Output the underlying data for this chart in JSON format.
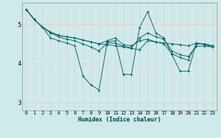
{
  "xlabel": "Humidex (Indice chaleur)",
  "bg_color": "#ceeaea",
  "grid_color": "#f0c8c8",
  "line_color": "#006666",
  "xlim": [
    -0.5,
    23.5
  ],
  "ylim": [
    2.8,
    5.55
  ],
  "yticks": [
    3,
    4,
    5
  ],
  "xticks": [
    0,
    1,
    2,
    3,
    4,
    5,
    6,
    7,
    8,
    9,
    10,
    11,
    12,
    13,
    14,
    15,
    16,
    17,
    18,
    19,
    20,
    21,
    22,
    23
  ],
  "series": [
    [
      5.38,
      5.12,
      4.93,
      4.65,
      4.58,
      4.52,
      4.45,
      3.68,
      3.45,
      3.32,
      4.55,
      4.58,
      3.72,
      3.72,
      4.92,
      5.32,
      4.78,
      4.65,
      4.22,
      3.8,
      3.8,
      4.52,
      4.48,
      4.42
    ],
    [
      5.38,
      5.12,
      4.93,
      4.8,
      4.72,
      4.68,
      4.65,
      4.6,
      4.55,
      4.5,
      4.48,
      4.45,
      4.42,
      4.38,
      4.35,
      4.58,
      4.55,
      4.52,
      4.5,
      4.48,
      4.45,
      4.52,
      4.5,
      4.45
    ],
    [
      5.38,
      5.12,
      4.93,
      4.78,
      4.68,
      4.62,
      4.58,
      4.5,
      4.42,
      4.32,
      4.52,
      4.52,
      4.44,
      4.4,
      4.65,
      4.78,
      4.68,
      4.62,
      4.32,
      4.22,
      4.18,
      4.44,
      4.44,
      4.42
    ],
    [
      5.38,
      5.12,
      4.93,
      4.8,
      4.72,
      4.68,
      4.65,
      4.6,
      4.55,
      4.5,
      4.58,
      4.65,
      4.48,
      4.45,
      4.58,
      4.62,
      4.55,
      4.5,
      4.25,
      4.15,
      4.08,
      4.5,
      4.5,
      4.45
    ]
  ]
}
